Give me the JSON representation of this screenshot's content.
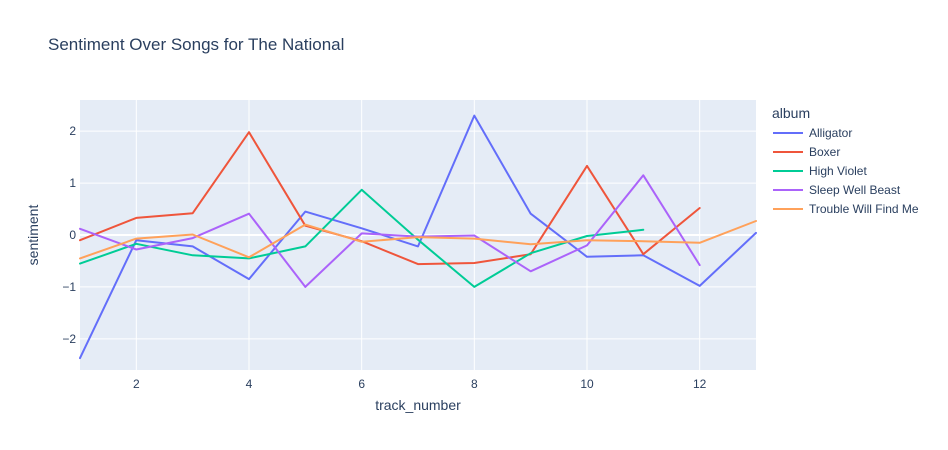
{
  "chart_data": {
    "type": "line",
    "title": "Sentiment Over Songs for The National",
    "xlabel": "track_number",
    "ylabel": "sentiment",
    "xlim": [
      1,
      13
    ],
    "ylim": [
      -2.6,
      2.6
    ],
    "xticks": [
      2,
      4,
      6,
      8,
      10,
      12
    ],
    "yticks": [
      -2,
      -1,
      0,
      1,
      2
    ],
    "ytick_labels": [
      "−2",
      "−1",
      "0",
      "1",
      "2"
    ],
    "grid": true,
    "legend": {
      "title": "album",
      "placement": "right"
    },
    "series": [
      {
        "name": "Alligator",
        "color": "#636efa",
        "x": [
          1,
          2,
          3,
          4,
          5,
          6,
          7,
          8,
          9,
          10,
          11,
          12,
          13
        ],
        "y": [
          -2.37,
          -0.1,
          -0.22,
          -0.85,
          0.45,
          0.13,
          -0.22,
          2.3,
          0.41,
          -0.42,
          -0.39,
          -0.98,
          0.04
        ]
      },
      {
        "name": "Boxer",
        "color": "#ef553b",
        "x": [
          1,
          2,
          3,
          4,
          5,
          6,
          7,
          8,
          9,
          10,
          11,
          12
        ],
        "y": [
          -0.1,
          0.33,
          0.42,
          1.98,
          0.18,
          -0.12,
          -0.56,
          -0.54,
          -0.37,
          1.33,
          -0.37,
          0.52
        ]
      },
      {
        "name": "High Violet",
        "color": "#00cc96",
        "x": [
          1,
          2,
          3,
          4,
          5,
          6,
          7,
          8,
          9,
          10,
          11
        ],
        "y": [
          -0.55,
          -0.17,
          -0.39,
          -0.45,
          -0.22,
          0.87,
          -0.09,
          -1.0,
          -0.35,
          -0.02,
          0.1
        ]
      },
      {
        "name": "Sleep Well Beast",
        "color": "#ab63fa",
        "x": [
          1,
          2,
          3,
          4,
          5,
          6,
          7,
          8,
          9,
          10,
          11,
          12
        ],
        "y": [
          0.12,
          -0.28,
          -0.06,
          0.41,
          -1.0,
          0.03,
          -0.03,
          -0.01,
          -0.7,
          -0.2,
          1.15,
          -0.58
        ]
      },
      {
        "name": "Trouble Will Find Me",
        "color": "#ffa15a",
        "x": [
          1,
          2,
          3,
          4,
          5,
          6,
          7,
          8,
          9,
          10,
          11,
          12,
          13
        ],
        "y": [
          -0.45,
          -0.07,
          0.01,
          -0.43,
          0.2,
          -0.13,
          -0.04,
          -0.07,
          -0.18,
          -0.1,
          -0.12,
          -0.15,
          0.27
        ]
      }
    ]
  }
}
